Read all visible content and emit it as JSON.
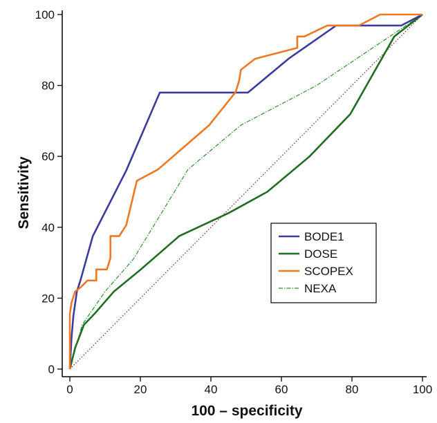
{
  "chart_data": {
    "type": "line",
    "xlabel": "100 – specificity",
    "ylabel": "Sensitivity",
    "xlim": [
      0,
      100
    ],
    "ylim": [
      0,
      100
    ],
    "x_ticks": [
      0,
      20,
      40,
      60,
      80,
      100
    ],
    "y_ticks": [
      0,
      20,
      40,
      60,
      80,
      100
    ],
    "x_tick_labels": [
      "0",
      "20",
      "40",
      "60",
      "80",
      "100"
    ],
    "y_tick_labels": [
      "0",
      "20",
      "40",
      "60",
      "80",
      "100"
    ],
    "grid": false,
    "legend_position": "bottom-right",
    "reference_line": {
      "points": [
        [
          0,
          0
        ],
        [
          100,
          100
        ]
      ],
      "color": "#8b1a1a",
      "style": "dotted"
    },
    "series": [
      {
        "name": "BODE1",
        "color": "#3b3b9e",
        "style": "solid",
        "points": [
          [
            0,
            0
          ],
          [
            0.5,
            9
          ],
          [
            1,
            15
          ],
          [
            2,
            21.9
          ],
          [
            3,
            25
          ],
          [
            6.5,
            37.5
          ],
          [
            16,
            56
          ],
          [
            25.5,
            78
          ],
          [
            40,
            78
          ],
          [
            50.5,
            78
          ],
          [
            62,
            87.5
          ],
          [
            75.5,
            96.9
          ],
          [
            94,
            96.9
          ],
          [
            100,
            100
          ]
        ]
      },
      {
        "name": "DOSE",
        "color": "#1f6e1f",
        "style": "solid",
        "points": [
          [
            0,
            0
          ],
          [
            1.5,
            6
          ],
          [
            4,
            12.5
          ],
          [
            7,
            15.6
          ],
          [
            12.5,
            21.9
          ],
          [
            20,
            28
          ],
          [
            31,
            37.5
          ],
          [
            45,
            44
          ],
          [
            56,
            50
          ],
          [
            68,
            60
          ],
          [
            79.5,
            71.9
          ],
          [
            92,
            93.8
          ],
          [
            100,
            100
          ]
        ]
      },
      {
        "name": "SCOPEX",
        "color": "#f07820",
        "style": "solid",
        "points": [
          [
            0,
            0
          ],
          [
            0,
            15.6
          ],
          [
            0.5,
            18.8
          ],
          [
            1.5,
            21.9
          ],
          [
            3,
            23
          ],
          [
            5,
            25
          ],
          [
            7.5,
            25
          ],
          [
            7.5,
            28.1
          ],
          [
            10.5,
            28.1
          ],
          [
            11.5,
            31.3
          ],
          [
            11.5,
            37.5
          ],
          [
            14,
            37.5
          ],
          [
            16,
            40.6
          ],
          [
            19,
            53.1
          ],
          [
            25,
            56.3
          ],
          [
            39.5,
            68.8
          ],
          [
            47,
            78.1
          ],
          [
            48,
            81.3
          ],
          [
            48.5,
            84.4
          ],
          [
            52.5,
            87.5
          ],
          [
            64.5,
            90.6
          ],
          [
            64.5,
            93.8
          ],
          [
            66.5,
            93.8
          ],
          [
            73,
            96.9
          ],
          [
            82,
            96.9
          ],
          [
            88,
            100
          ],
          [
            100,
            100
          ]
        ]
      },
      {
        "name": "NEXA",
        "color": "#2e8b2e",
        "style": "dashdot",
        "points": [
          [
            0,
            0
          ],
          [
            3.5,
            12.5
          ],
          [
            10,
            21.9
          ],
          [
            18,
            31
          ],
          [
            33.5,
            56.3
          ],
          [
            48.5,
            68.8
          ],
          [
            70,
            80
          ],
          [
            100,
            100
          ]
        ]
      }
    ]
  }
}
